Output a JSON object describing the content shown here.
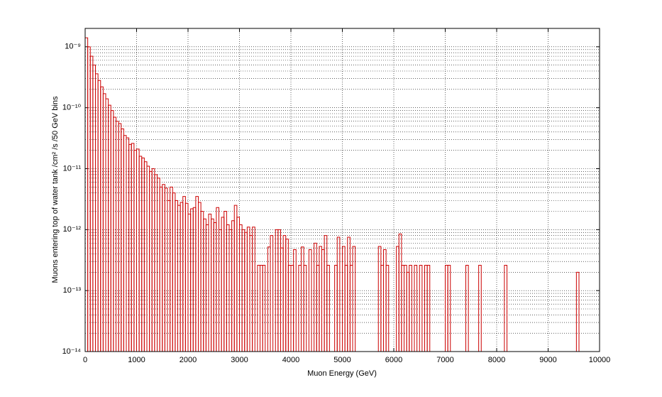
{
  "chart_data": {
    "type": "histogram",
    "x_label": "Muon Energy (GeV)",
    "y_label": "Muons entering top of water tank /cm² /s /50 GeV bins",
    "color": "#cc0000",
    "log_y": true,
    "grid": true,
    "minor_grid": true,
    "xlim": [
      0,
      10000
    ],
    "xticks": [
      0,
      1000,
      2000,
      3000,
      4000,
      5000,
      6000,
      7000,
      8000,
      9000,
      10000
    ],
    "ylim": [
      1e-14,
      2e-09
    ],
    "yticks": [
      {
        "value": 1e-14,
        "label": "10⁻¹⁴"
      },
      {
        "value": 1e-13,
        "label": "10⁻¹³"
      },
      {
        "value": 1e-12,
        "label": "10⁻¹²"
      },
      {
        "value": 1e-11,
        "label": "10⁻¹¹"
      },
      {
        "value": 1e-10,
        "label": "10⁻¹⁰"
      },
      {
        "value": 1e-09,
        "label": "10⁻⁹"
      }
    ],
    "bins": [
      0,
      50,
      100,
      150,
      200,
      250,
      300,
      350,
      400,
      450,
      500,
      550,
      600,
      650,
      700,
      750,
      800,
      850,
      900,
      950,
      1000,
      1050,
      1100,
      1150,
      1200,
      1250,
      1300,
      1350,
      1400,
      1450,
      1500,
      1550,
      1600,
      1650,
      1700,
      1750,
      1800,
      1850,
      1900,
      1950,
      2000,
      2050,
      2100,
      2150,
      2200,
      2250,
      2300,
      2350,
      2400,
      2450,
      2500,
      2550,
      2600,
      2650,
      2700,
      2750,
      2800,
      2850,
      2900,
      2950,
      3000,
      3050,
      3100,
      3150,
      3200,
      3250,
      3300,
      3350,
      3400,
      3450,
      3500,
      3550,
      3600,
      3650,
      3700,
      3750,
      3800,
      3850,
      3900,
      3950,
      4000,
      4050,
      4100,
      4150,
      4200,
      4250,
      4300,
      4350,
      4400,
      4450,
      4500,
      4550,
      4600,
      4650,
      4700,
      4750,
      4800,
      4850,
      4900,
      4950,
      5000,
      5050,
      5100,
      5150,
      5200,
      5250,
      5300,
      5350,
      5400,
      5450,
      5500,
      5550,
      5600,
      5650,
      5700,
      5750,
      5800,
      5850,
      5900,
      5950,
      6000,
      6050,
      6100,
      6150,
      6200,
      6250,
      6300,
      6350,
      6400,
      6450,
      6500,
      6550,
      6600,
      6650,
      6700,
      6750,
      6800,
      6850,
      6900,
      6950,
      7000,
      7050,
      7100,
      7150,
      7200,
      7250,
      7300,
      7350,
      7400,
      7450,
      7500,
      7550,
      7600,
      7650,
      7700,
      7750,
      7800,
      7850,
      7900,
      7950,
      8000,
      8050,
      8100,
      8150,
      8200,
      8250,
      8300,
      8350,
      8400,
      8450,
      8500,
      8550,
      8600,
      8650,
      8700,
      8750,
      8800,
      8850,
      8900,
      8950,
      9000,
      9050,
      9100,
      9150,
      9200,
      9250,
      9300,
      9350,
      9400,
      9450,
      9500,
      9550,
      9600,
      9650,
      9700,
      9750,
      9800,
      9850,
      9900,
      9950,
      10000
    ],
    "values": [
      1.4e-09,
      1e-09,
      7e-10,
      5e-10,
      3.6e-10,
      2.8e-10,
      2.2e-10,
      1.7e-10,
      1.4e-10,
      1.1e-10,
      9e-11,
      7e-11,
      6e-11,
      5.5e-11,
      4.5e-11,
      3.5e-11,
      3.2e-11,
      2.5e-11,
      2.6e-11,
      2e-11,
      2.1e-11,
      1.6e-11,
      1.5e-11,
      1.3e-11,
      1.1e-11,
      9e-12,
      1e-11,
      8e-12,
      7e-12,
      5e-12,
      5.5e-12,
      4.8e-12,
      3e-12,
      5e-12,
      4e-12,
      3e-12,
      2.5e-12,
      2.8e-12,
      3.5e-12,
      2.7e-12,
      1.8e-12,
      2.2e-12,
      2.3e-12,
      3.5e-12,
      2.8e-12,
      2e-12,
      1.5e-12,
      1.2e-12,
      1.8e-12,
      1.5e-12,
      1.3e-12,
      2.3e-12,
      1e-12,
      1.6e-12,
      2e-12,
      1.2e-12,
      1e-12,
      1.4e-12,
      2.5e-12,
      1.6e-12,
      1.2e-12,
      1e-12,
      9e-13,
      1.1e-12,
      8e-13,
      1.1e-12,
      0,
      2.6e-13,
      2.6e-13,
      2.6e-13,
      0,
      5.2e-13,
      8e-13,
      0,
      1e-12,
      1e-12,
      5e-13,
      8e-13,
      7e-13,
      2.6e-13,
      2.6e-13,
      4.7e-13,
      0,
      2.6e-13,
      5.2e-13,
      2.6e-13,
      0,
      4.7e-13,
      0,
      6e-13,
      2.6e-13,
      5.3e-13,
      4.7e-13,
      8e-13,
      2.6e-13,
      0,
      0,
      2.6e-13,
      7.5e-13,
      0,
      5.3e-13,
      2.6e-13,
      7.5e-13,
      2.6e-13,
      5.3e-13,
      0,
      0,
      0,
      0,
      0,
      0,
      0,
      0,
      0,
      5.3e-13,
      2.6e-13,
      4.7e-13,
      2.6e-13,
      0,
      0,
      0,
      5.3e-13,
      8.5e-13,
      2.6e-13,
      2.6e-13,
      2e-13,
      2.6e-13,
      0,
      2.6e-13,
      0,
      2.6e-13,
      0,
      2.6e-13,
      2.6e-13,
      0,
      0,
      0,
      0,
      0,
      0,
      2.6e-13,
      2.6e-13,
      0,
      0,
      0,
      0,
      0,
      0,
      2.6e-13,
      0,
      0,
      0,
      0,
      2.6e-13,
      0,
      0,
      0,
      0,
      0,
      0,
      0,
      0,
      0,
      2.6e-13,
      0,
      0,
      0,
      0,
      0,
      0,
      0,
      0,
      0,
      0,
      0,
      0,
      0,
      0,
      0,
      0,
      0,
      0,
      0,
      0,
      0,
      0,
      0,
      0,
      0,
      0,
      0,
      2e-13,
      0,
      0,
      0,
      0,
      0,
      0,
      0,
      0
    ]
  }
}
